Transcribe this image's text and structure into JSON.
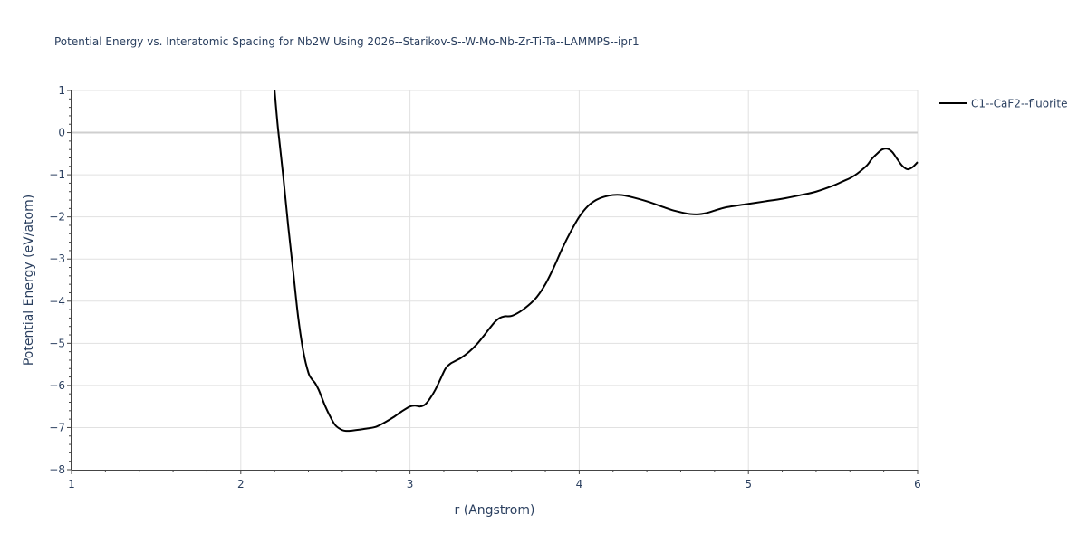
{
  "chart_data": {
    "type": "line",
    "title": "Potential Energy vs. Interatomic Spacing for Nb2W Using 2026--Starikov-S--W-Mo-Nb-Zr-Ti-Ta--LAMMPS--ipr1",
    "xlabel": "r (Angstrom)",
    "ylabel": "Potential Energy (eV/atom)",
    "xlim": [
      1,
      6
    ],
    "ylim": [
      -8,
      1
    ],
    "x_ticks": [
      "1",
      "2",
      "3",
      "4",
      "5",
      "6"
    ],
    "y_ticks": [
      "1",
      "0",
      "−1",
      "−2",
      "−3",
      "−4",
      "−5",
      "−6",
      "−7",
      "−8"
    ],
    "grid": true,
    "legend_position": "top-right",
    "series": [
      {
        "name": "C1--CaF2--fluorite",
        "color": "#000000",
        "x": [
          2.2,
          2.22,
          2.25,
          2.28,
          2.31,
          2.34,
          2.37,
          2.4,
          2.42,
          2.44,
          2.46,
          2.48,
          2.5,
          2.53,
          2.56,
          2.6,
          2.63,
          2.66,
          2.7,
          2.75,
          2.8,
          2.85,
          2.9,
          2.95,
          3.0,
          3.03,
          3.06,
          3.09,
          3.12,
          3.15,
          3.18,
          3.21,
          3.24,
          3.3,
          3.35,
          3.4,
          3.45,
          3.5,
          3.53,
          3.56,
          3.6,
          3.65,
          3.7,
          3.75,
          3.8,
          3.85,
          3.9,
          3.95,
          4.0,
          4.05,
          4.1,
          4.15,
          4.2,
          4.25,
          4.3,
          4.4,
          4.5,
          4.55,
          4.6,
          4.65,
          4.7,
          4.75,
          4.8,
          4.85,
          4.9,
          5.0,
          5.1,
          5.2,
          5.3,
          5.4,
          5.5,
          5.55,
          5.6,
          5.63,
          5.66,
          5.7,
          5.73,
          5.76,
          5.79,
          5.82,
          5.85,
          5.88,
          5.91,
          5.94,
          5.97,
          6.0
        ],
        "y": [
          1.0,
          0.1,
          -1.0,
          -2.2,
          -3.3,
          -4.4,
          -5.2,
          -5.7,
          -5.85,
          -5.95,
          -6.1,
          -6.3,
          -6.5,
          -6.75,
          -6.95,
          -7.06,
          -7.08,
          -7.07,
          -7.05,
          -7.02,
          -6.98,
          -6.88,
          -6.76,
          -6.62,
          -6.5,
          -6.48,
          -6.5,
          -6.45,
          -6.3,
          -6.1,
          -5.85,
          -5.6,
          -5.48,
          -5.35,
          -5.2,
          -5.0,
          -4.75,
          -4.5,
          -4.4,
          -4.36,
          -4.35,
          -4.25,
          -4.1,
          -3.9,
          -3.6,
          -3.2,
          -2.75,
          -2.35,
          -2.0,
          -1.75,
          -1.6,
          -1.52,
          -1.48,
          -1.48,
          -1.52,
          -1.63,
          -1.77,
          -1.84,
          -1.89,
          -1.93,
          -1.94,
          -1.91,
          -1.85,
          -1.79,
          -1.75,
          -1.69,
          -1.63,
          -1.57,
          -1.49,
          -1.4,
          -1.26,
          -1.17,
          -1.08,
          -1.01,
          -0.92,
          -0.78,
          -0.62,
          -0.5,
          -0.4,
          -0.38,
          -0.46,
          -0.63,
          -0.79,
          -0.87,
          -0.82,
          -0.7
        ]
      }
    ]
  }
}
